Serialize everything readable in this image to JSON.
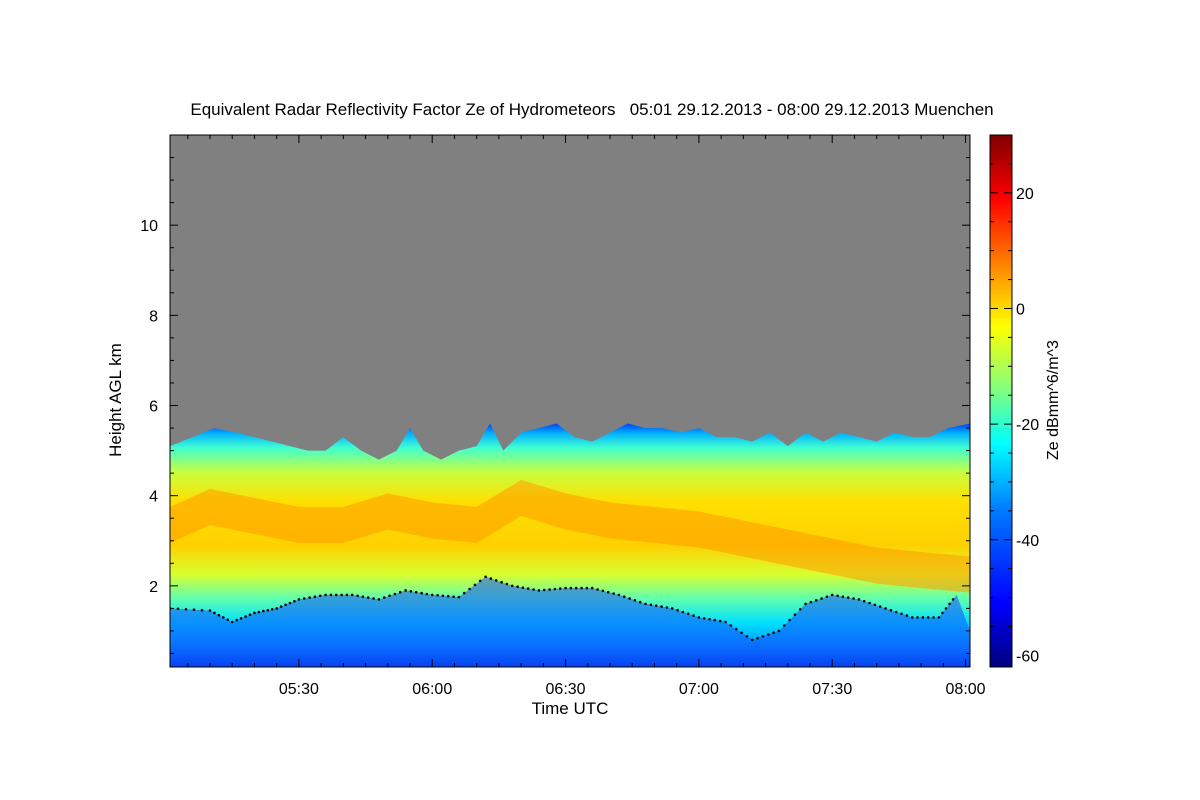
{
  "chart_data": {
    "type": "heatmap",
    "title": "Equivalent Radar Reflectivity Factor Ze of Hydrometeors   05:01 29.12.2013 - 08:00 29.12.2013 Muenchen",
    "xlabel": "Time UTC",
    "ylabel": "Height AGL km",
    "colorbar_label": "Ze dBmm^6/m^3",
    "xlim_minutes": [
      301,
      481
    ],
    "ylim": [
      0.2,
      12.0
    ],
    "x_ticks": [
      {
        "label": "05:30",
        "value": 330
      },
      {
        "label": "06:00",
        "value": 360
      },
      {
        "label": "06:30",
        "value": 390
      },
      {
        "label": "07:00",
        "value": 420
      },
      {
        "label": "07:30",
        "value": 450
      },
      {
        "label": "08:00",
        "value": 480
      }
    ],
    "y_ticks": [
      {
        "label": "2",
        "value": 2
      },
      {
        "label": "4",
        "value": 4
      },
      {
        "label": "6",
        "value": 6
      },
      {
        "label": "8",
        "value": 8
      },
      {
        "label": "10",
        "value": 10
      }
    ],
    "colorbar_range": [
      -62,
      30
    ],
    "colorbar_ticks": [
      {
        "label": "20",
        "value": 20
      },
      {
        "label": "0",
        "value": 0
      },
      {
        "label": "-20",
        "value": -20
      },
      {
        "label": "-40",
        "value": -40
      },
      {
        "label": "-60",
        "value": -60
      }
    ],
    "no_signal_color": "#808080",
    "colormap": [
      "#00007f",
      "#0000ff",
      "#007fff",
      "#00ffff",
      "#7fff7f",
      "#ffff00",
      "#ff7f00",
      "#ff0000",
      "#7f0000"
    ],
    "cloud_top_km": [
      [
        301,
        5.1
      ],
      [
        306,
        5.3
      ],
      [
        311,
        5.5
      ],
      [
        316,
        5.4
      ],
      [
        320,
        5.3
      ],
      [
        324,
        5.2
      ],
      [
        328,
        5.1
      ],
      [
        332,
        5.0
      ],
      [
        336,
        5.0
      ],
      [
        340,
        5.3
      ],
      [
        344,
        5.0
      ],
      [
        348,
        4.8
      ],
      [
        352,
        5.0
      ],
      [
        355,
        5.5
      ],
      [
        358,
        5.0
      ],
      [
        362,
        4.8
      ],
      [
        366,
        5.0
      ],
      [
        370,
        5.1
      ],
      [
        373,
        5.6
      ],
      [
        376,
        5.0
      ],
      [
        380,
        5.4
      ],
      [
        384,
        5.5
      ],
      [
        388,
        5.6
      ],
      [
        392,
        5.3
      ],
      [
        396,
        5.2
      ],
      [
        400,
        5.4
      ],
      [
        404,
        5.6
      ],
      [
        408,
        5.5
      ],
      [
        412,
        5.5
      ],
      [
        416,
        5.4
      ],
      [
        420,
        5.5
      ],
      [
        424,
        5.3
      ],
      [
        428,
        5.3
      ],
      [
        432,
        5.2
      ],
      [
        436,
        5.4
      ],
      [
        440,
        5.1
      ],
      [
        444,
        5.4
      ],
      [
        448,
        5.2
      ],
      [
        452,
        5.4
      ],
      [
        456,
        5.3
      ],
      [
        460,
        5.2
      ],
      [
        464,
        5.4
      ],
      [
        468,
        5.3
      ],
      [
        472,
        5.3
      ],
      [
        476,
        5.5
      ],
      [
        481,
        5.6
      ]
    ],
    "reflectivity_band": {
      "description_series": "height of strongest echo layer (km) vs time (min)",
      "points": [
        [
          301,
          3.3
        ],
        [
          310,
          3.7
        ],
        [
          320,
          3.5
        ],
        [
          330,
          3.3
        ],
        [
          340,
          3.3
        ],
        [
          350,
          3.6
        ],
        [
          360,
          3.4
        ],
        [
          370,
          3.3
        ],
        [
          380,
          3.9
        ],
        [
          390,
          3.6
        ],
        [
          400,
          3.4
        ],
        [
          410,
          3.3
        ],
        [
          420,
          3.2
        ],
        [
          430,
          3.0
        ],
        [
          440,
          2.8
        ],
        [
          450,
          2.6
        ],
        [
          460,
          2.4
        ],
        [
          470,
          2.3
        ],
        [
          481,
          2.2
        ]
      ]
    },
    "cloud_base_km": [
      [
        301,
        1.5
      ],
      [
        310,
        1.45
      ],
      [
        315,
        1.2
      ],
      [
        320,
        1.4
      ],
      [
        325,
        1.5
      ],
      [
        330,
        1.7
      ],
      [
        336,
        1.8
      ],
      [
        342,
        1.8
      ],
      [
        348,
        1.7
      ],
      [
        354,
        1.9
      ],
      [
        360,
        1.8
      ],
      [
        366,
        1.75
      ],
      [
        372,
        2.2
      ],
      [
        378,
        2.0
      ],
      [
        384,
        1.9
      ],
      [
        390,
        1.95
      ],
      [
        396,
        1.95
      ],
      [
        402,
        1.8
      ],
      [
        408,
        1.6
      ],
      [
        414,
        1.5
      ],
      [
        420,
        1.3
      ],
      [
        426,
        1.2
      ],
      [
        432,
        0.8
      ],
      [
        438,
        1.0
      ],
      [
        444,
        1.6
      ],
      [
        450,
        1.8
      ],
      [
        456,
        1.7
      ],
      [
        462,
        1.5
      ],
      [
        468,
        1.3
      ],
      [
        474,
        1.3
      ],
      [
        478,
        1.8
      ]
    ]
  }
}
